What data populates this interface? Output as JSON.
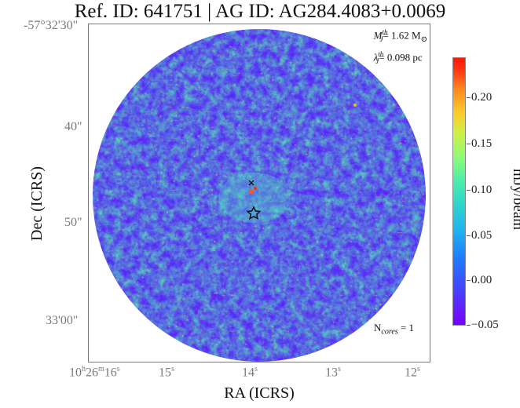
{
  "title": "Ref. ID: 641751 | AG ID: AG284.4083+0.0069",
  "axes": {
    "xlabel": "RA (ICRS)",
    "ylabel": "Dec (ICRS)",
    "x_ticks": [
      "10h26m16s",
      "15s",
      "14s",
      "13s",
      "12s"
    ],
    "y_ticks": [
      "-57°32'30\"",
      "40\"",
      "50\"",
      "33'00\""
    ]
  },
  "annotations": {
    "mass_label": "M",
    "mass_super": "th",
    "mass_sub": "J",
    "mass_value": "= 1.62 M",
    "mass_unit_symbol": "⊙",
    "lambda_label": "λ",
    "lambda_super": "th",
    "lambda_sub": "J",
    "lambda_value": "= 0.098 pc",
    "ncores_prefix": "N",
    "ncores_sub": "cores",
    "ncores_value": " = 1"
  },
  "colorbar": {
    "label": "mJy/beam",
    "ticks": [
      "0.20",
      "0.15",
      "0.10",
      "0.05",
      "0.00",
      "−0.05"
    ],
    "colormap": "rainbow",
    "range": [
      -0.05,
      0.24
    ]
  },
  "markers": {
    "star_icon": "star-outline-icon",
    "cross_icon": "cross-marker-icon"
  }
}
